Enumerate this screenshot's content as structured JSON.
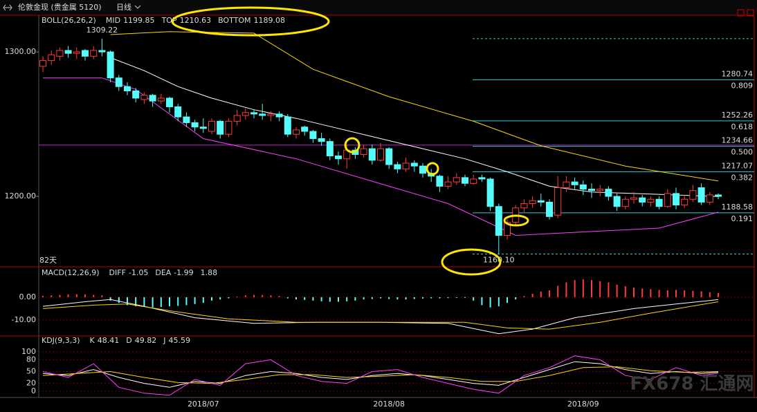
{
  "header": {
    "symbol": "伦敦金现 (贵金属 5120)",
    "period": "日线"
  },
  "watermark": "FX678 汇通网",
  "chart_data": [
    {
      "type": "candlestick",
      "indicator": "BOLL(26,26,2)",
      "period_count": "82天",
      "ylim": [
        1151.7,
        1325.4
      ],
      "yticks": [
        {
          "value": 1300,
          "label": "1300.00"
        },
        {
          "value": 1200,
          "label": "1200.00"
        }
      ],
      "categories": [
        null,
        null,
        null,
        null,
        null,
        null,
        null,
        null,
        null,
        null,
        null,
        null,
        null,
        null,
        null,
        null,
        null,
        null,
        null,
        "2018/07",
        null,
        null,
        null,
        null,
        null,
        null,
        null,
        null,
        null,
        null,
        null,
        null,
        null,
        null,
        null,
        null,
        null,
        null,
        null,
        null,
        null,
        "2018/08",
        null,
        null,
        null,
        null,
        null,
        null,
        null,
        null,
        null,
        null,
        null,
        null,
        null,
        null,
        null,
        null,
        null,
        null,
        null,
        null,
        null,
        null,
        "2018/09",
        null,
        null,
        null,
        null,
        null,
        null,
        null,
        null,
        null,
        null,
        null,
        null,
        null,
        null,
        null,
        null
      ],
      "up_color": "#ff3c3c",
      "down_color": "#54fcfc",
      "ohlc": [
        [
          1290,
          1297,
          1286,
          1294
        ],
        [
          1294,
          1301,
          1291,
          1298
        ],
        [
          1297,
          1303,
          1294,
          1301
        ],
        [
          1301,
          1304,
          1296,
          1299
        ],
        [
          1299,
          1303,
          1295,
          1300
        ],
        [
          1301,
          1302,
          1294,
          1297
        ],
        [
          1297,
          1304,
          1295,
          1301
        ],
        [
          1301,
          1309.22,
          1297,
          1300
        ],
        [
          1300,
          1301,
          1279,
          1282
        ],
        [
          1282,
          1284,
          1273,
          1276
        ],
        [
          1276,
          1279,
          1270,
          1273
        ],
        [
          1273,
          1275,
          1265,
          1268
        ],
        [
          1267,
          1272,
          1264,
          1270
        ],
        [
          1270,
          1271,
          1262,
          1266
        ],
        [
          1266,
          1271,
          1264,
          1268
        ],
        [
          1268,
          1269,
          1258,
          1262
        ],
        [
          1262,
          1264,
          1252,
          1255
        ],
        [
          1255,
          1258,
          1248,
          1251
        ],
        [
          1251,
          1253,
          1245,
          1248
        ],
        [
          1248,
          1254,
          1244,
          1247
        ],
        [
          1245,
          1254,
          1243,
          1252
        ],
        [
          1252,
          1253,
          1240,
          1243
        ],
        [
          1243,
          1254,
          1241,
          1252
        ],
        [
          1252,
          1260,
          1249,
          1256
        ],
        [
          1256,
          1261,
          1253,
          1258
        ],
        [
          1258,
          1260,
          1254,
          1257
        ],
        [
          1257,
          1264,
          1253,
          1256
        ],
        [
          1256,
          1259,
          1252,
          1257
        ],
        [
          1257,
          1259,
          1252,
          1255
        ],
        [
          1255,
          1257,
          1241,
          1243
        ],
        [
          1243,
          1248,
          1240,
          1246
        ],
        [
          1248,
          1249,
          1242,
          1245
        ],
        [
          1245,
          1246,
          1237,
          1240
        ],
        [
          1240,
          1244,
          1235,
          1238
        ],
        [
          1238,
          1240,
          1225,
          1228
        ],
        [
          1228,
          1231,
          1222,
          1226
        ],
        [
          1226,
          1236,
          1219,
          1232
        ],
        [
          1232,
          1234,
          1226,
          1229
        ],
        [
          1229,
          1236,
          1227,
          1233
        ],
        [
          1233,
          1236,
          1222,
          1225
        ],
        [
          1225,
          1237,
          1224,
          1233
        ],
        [
          1233,
          1234,
          1219,
          1222
        ],
        [
          1222,
          1224,
          1216,
          1219
        ],
        [
          1219,
          1227,
          1217,
          1223
        ],
        [
          1223,
          1225,
          1217,
          1221
        ],
        [
          1221,
          1223,
          1213,
          1216
        ],
        [
          1216,
          1219,
          1210,
          1214
        ],
        [
          1214,
          1215,
          1203,
          1207
        ],
        [
          1207,
          1214,
          1205,
          1210
        ],
        [
          1210,
          1216,
          1208,
          1213
        ],
        [
          1213,
          1215,
          1207,
          1209
        ],
        [
          1209,
          1215,
          1208,
          1212
        ],
        [
          1213,
          1215,
          1210,
          1212
        ],
        [
          1212,
          1213,
          1190,
          1193
        ],
        [
          1193,
          1195,
          1160.1,
          1173
        ],
        [
          1173,
          1184,
          1170,
          1182
        ],
        [
          1182,
          1194,
          1180,
          1192
        ],
        [
          1192,
          1198,
          1189,
          1195
        ],
        [
          1195,
          1200,
          1192,
          1197
        ],
        [
          1197,
          1202,
          1193,
          1196
        ],
        [
          1196,
          1198,
          1184,
          1186
        ],
        [
          1187,
          1214,
          1185,
          1206
        ],
        [
          1206,
          1214,
          1203,
          1210
        ],
        [
          1210,
          1213,
          1205,
          1208
        ],
        [
          1208,
          1211,
          1201,
          1205
        ],
        [
          1205,
          1209,
          1199,
          1204
        ],
        [
          1204,
          1208,
          1200,
          1205
        ],
        [
          1205,
          1207,
          1197,
          1200
        ],
        [
          1200,
          1202,
          1190,
          1193
        ],
        [
          1193,
          1200,
          1191,
          1198
        ],
        [
          1198,
          1203,
          1195,
          1199
        ],
        [
          1199,
          1201,
          1193,
          1196
        ],
        [
          1196,
          1200,
          1193,
          1198
        ],
        [
          1198,
          1200,
          1191,
          1193
        ],
        [
          1193,
          1205,
          1192,
          1202
        ],
        [
          1202,
          1206,
          1191,
          1194
        ],
        [
          1194,
          1201,
          1192,
          1198
        ],
        [
          1198,
          1208,
          1196,
          1204
        ],
        [
          1206,
          1209,
          1194,
          1196
        ],
        [
          1196,
          1203,
          1194,
          1201
        ],
        [
          1201,
          1202,
          1198,
          1200
        ]
      ],
      "series": [
        {
          "name": "MID",
          "color": "#ffffff",
          "x": [
            8,
            12,
            16,
            20,
            25,
            30,
            35,
            40,
            45,
            50,
            55,
            60,
            65,
            70,
            75,
            80
          ],
          "values": [
            1296,
            1287,
            1276,
            1268,
            1260,
            1254,
            1247,
            1240,
            1233,
            1226,
            1217,
            1207,
            1203,
            1202,
            1201,
            1199.85
          ]
        },
        {
          "name": "TOP",
          "color": "#ffd800",
          "x": [
            8,
            15,
            25,
            32,
            41,
            51,
            59,
            69,
            80
          ],
          "values": [
            1312,
            1314,
            1313,
            1288,
            1269,
            1252,
            1235,
            1221,
            1210.63
          ]
        },
        {
          "name": "BOTTOM",
          "color": "#ff40ff",
          "x": [
            0,
            7,
            11,
            19,
            30,
            41,
            48,
            56,
            73,
            80
          ],
          "values": [
            1282,
            1282,
            1274,
            1240,
            1226,
            1207,
            1195,
            1173,
            1178,
            1189.08
          ]
        }
      ],
      "fib_color": "#2fd0d8",
      "fib_levels": [
        {
          "value": 1280.74,
          "ratio": "0.809"
        },
        {
          "value": 1252.26,
          "ratio": "0.618"
        },
        {
          "value": 1234.66,
          "ratio": "0.500"
        },
        {
          "value": 1217.07,
          "ratio": "0.382"
        },
        {
          "value": 1188.58,
          "ratio": "0.191"
        }
      ],
      "extremes": [
        1309.22,
        {
          "value": 1160.1,
          "label": "1160.10"
        }
      ],
      "support_line": {
        "value": 1235.5,
        "color": "#c020c8"
      }
    },
    {
      "type": "macd",
      "indicator": "MACD(12,26,9)",
      "ylim": [
        -16.7,
        12.7
      ],
      "yticks": [
        {
          "value": 0,
          "label": "0.00"
        },
        {
          "value": -10,
          "label": "-10.00"
        }
      ],
      "grid": true,
      "histogram": [
        0.6,
        0.8,
        1,
        1.2,
        1.3,
        1.2,
        1,
        0.8,
        -1.5,
        -2.5,
        -3.5,
        -4,
        -4.3,
        -4.5,
        -4.3,
        -4,
        -3.8,
        -3.5,
        -3,
        -2.5,
        -1.5,
        -1,
        -0.5,
        0.3,
        0.8,
        1,
        1,
        0.8,
        0.5,
        -0.5,
        -1,
        -1.2,
        -1.5,
        -1.8,
        -2,
        -2,
        -1.8,
        -1.5,
        -1,
        -0.8,
        -0.5,
        -0.8,
        -1,
        -1,
        -0.8,
        -0.6,
        -0.5,
        -0.5,
        -0.4,
        -0.3,
        -0.3,
        -1.5,
        -3.5,
        -4.5,
        -4,
        -2.5,
        -1,
        0.5,
        1.5,
        2.5,
        3,
        5,
        6.5,
        7.5,
        7.8,
        7.5,
        7,
        6.5,
        5.5,
        4.8,
        4.2,
        3.8,
        3.5,
        3.2,
        3,
        3.2,
        3,
        2.8,
        2.6,
        2.2,
        1.88
      ],
      "series": [
        {
          "name": "DIFF",
          "color": "#ffffff",
          "x": [
            0,
            5,
            8,
            12,
            18,
            25,
            32,
            40,
            48,
            54,
            58,
            63,
            70,
            75,
            80
          ],
          "values": [
            -4,
            -2,
            -1,
            -4,
            -9,
            -11.5,
            -11,
            -11,
            -11.5,
            -16,
            -14,
            -9,
            -5,
            -3,
            -1.05
          ]
        },
        {
          "name": "DEA",
          "color": "#ffd800",
          "x": [
            0,
            6,
            10,
            16,
            22,
            30,
            40,
            50,
            55,
            60,
            66,
            72,
            80
          ],
          "values": [
            -5,
            -3.5,
            -3,
            -6.5,
            -9.5,
            -11,
            -11,
            -11,
            -13.5,
            -14,
            -11,
            -7,
            -1.99
          ]
        }
      ]
    },
    {
      "type": "kdj",
      "indicator": "KDJ(9,3,3)",
      "ylim": [
        -15.8,
        136.8
      ],
      "yticks": [
        0,
        20,
        50,
        80,
        100
      ],
      "grid": true,
      "series": [
        {
          "name": "K",
          "color": "#ffffff",
          "x": [
            0,
            3,
            6,
            9,
            12,
            15,
            18,
            21,
            24,
            27,
            30,
            33,
            36,
            39,
            42,
            45,
            48,
            51,
            54,
            57,
            60,
            63,
            66,
            69,
            72,
            75,
            78,
            80
          ],
          "values": [
            45,
            40,
            55,
            35,
            20,
            10,
            25,
            20,
            40,
            50,
            45,
            35,
            30,
            40,
            45,
            40,
            30,
            20,
            15,
            35,
            55,
            75,
            70,
            55,
            45,
            50,
            45,
            48.41
          ]
        },
        {
          "name": "D",
          "color": "#ffd800",
          "x": [
            0,
            4,
            8,
            12,
            16,
            20,
            24,
            28,
            32,
            36,
            40,
            44,
            48,
            52,
            56,
            60,
            64,
            68,
            72,
            76,
            80
          ],
          "values": [
            40,
            45,
            50,
            35,
            22,
            20,
            30,
            42,
            42,
            35,
            38,
            42,
            35,
            25,
            25,
            40,
            60,
            62,
            52,
            48,
            49.82
          ]
        },
        {
          "name": "J",
          "color": "#ff40ff",
          "x": [
            0,
            3,
            6,
            9,
            12,
            15,
            18,
            21,
            24,
            27,
            30,
            33,
            36,
            39,
            42,
            45,
            48,
            51,
            54,
            57,
            60,
            63,
            66,
            69,
            72,
            75,
            78,
            80
          ],
          "values": [
            50,
            35,
            70,
            10,
            -5,
            -10,
            30,
            15,
            70,
            80,
            40,
            25,
            20,
            50,
            55,
            35,
            20,
            5,
            -5,
            40,
            60,
            90,
            80,
            40,
            30,
            60,
            40,
            45.59
          ]
        }
      ]
    }
  ]
}
